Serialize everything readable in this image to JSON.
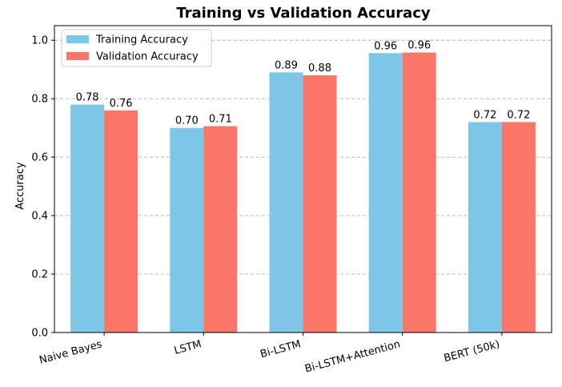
{
  "chart_data": {
    "type": "bar",
    "title": "Training vs Validation Accuracy",
    "xlabel": "",
    "ylabel": "Accuracy",
    "ylim": [
      0,
      1.05
    ],
    "yticks": [
      0.0,
      0.2,
      0.4,
      0.6,
      0.8,
      1.0
    ],
    "grid": true,
    "legend_position": "top-left",
    "categories": [
      "Naive Bayes",
      "LSTM",
      "Bi-LSTM",
      "Bi-LSTM+Attention",
      "BERT (50k)"
    ],
    "series": [
      {
        "name": "Training Accuracy",
        "color": "#7ec6e8",
        "values": [
          0.78,
          0.7,
          0.89,
          0.956,
          0.72
        ],
        "labels": [
          "0.78",
          "0.70",
          "0.89",
          "0.96",
          "0.72"
        ]
      },
      {
        "name": "Validation Accuracy",
        "color": "#fa7668",
        "values": [
          0.76,
          0.706,
          0.88,
          0.958,
          0.72
        ],
        "labels": [
          "0.76",
          "0.71",
          "0.88",
          "0.96",
          "0.72"
        ]
      }
    ]
  }
}
